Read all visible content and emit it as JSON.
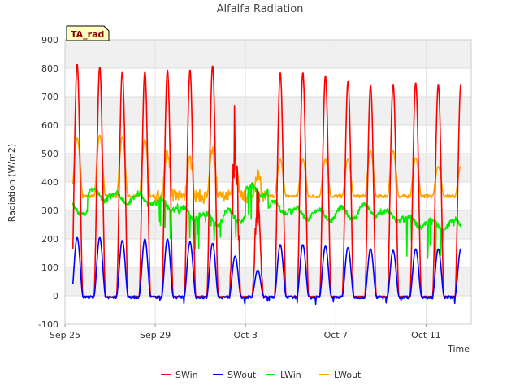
{
  "chart_data": {
    "type": "line",
    "title": "Alfalfa Radiation",
    "xlabel": "Time",
    "ylabel": "Radiation (W/m2)",
    "badge": "TA_rad",
    "x_domain_days": [
      0,
      18
    ],
    "x_start_label": "Sep 25",
    "x_ticks": [
      {
        "day": 0,
        "label": "Sep 25"
      },
      {
        "day": 4,
        "label": "Sep 29"
      },
      {
        "day": 8,
        "label": "Oct 3"
      },
      {
        "day": 12,
        "label": "Oct 7"
      },
      {
        "day": 16,
        "label": "Oct 11"
      }
    ],
    "ylim": [
      -100,
      900
    ],
    "y_ticks": [
      -100,
      0,
      100,
      200,
      300,
      400,
      500,
      600,
      700,
      800,
      900
    ],
    "grid": true,
    "legend_position": "bottom",
    "series": [
      {
        "name": "SWin",
        "color": "#ff0000",
        "daily_peak": [
          815,
          805,
          790,
          790,
          795,
          795,
          810,
          745,
          400,
          785,
          785,
          775,
          755,
          740,
          745,
          750,
          745
        ],
        "night": -3
      },
      {
        "name": "SWout",
        "color": "#0000ff",
        "daily_peak": [
          205,
          205,
          195,
          200,
          200,
          190,
          185,
          140,
          90,
          180,
          180,
          175,
          170,
          165,
          160,
          165,
          165
        ],
        "night": -5
      },
      {
        "name": "LWin",
        "color": "#00ee00",
        "daily_level": [
          305,
          355,
          345,
          340,
          320,
          290,
          270,
          280,
          370,
          310,
          290,
          285,
          290,
          300,
          280,
          260,
          250
        ],
        "night": 300
      },
      {
        "name": "LWout",
        "color": "#ffa500",
        "daily_peak": [
          555,
          565,
          560,
          550,
          505,
          475,
          505,
          455,
          430,
          480,
          480,
          480,
          480,
          510,
          510,
          485,
          455
        ],
        "night": 350
      }
    ]
  }
}
